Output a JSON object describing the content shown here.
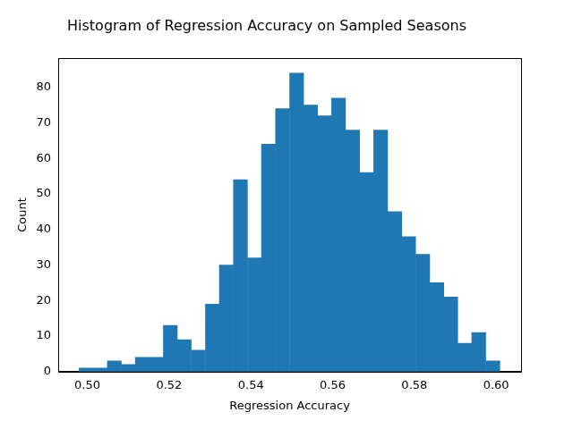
{
  "chart_data": {
    "type": "histogram",
    "title": "Histogram of Regression Accuracy on Sampled Seasons",
    "x_label": "Regression Accuracy",
    "y_label": "Count",
    "bins": [
      0.498,
      0.5014,
      0.5049,
      0.5083,
      0.5117,
      0.5152,
      0.5186,
      0.522,
      0.5254,
      0.5289,
      0.5323,
      0.5357,
      0.5392,
      0.5426,
      0.546,
      0.5495,
      0.5529,
      0.5563,
      0.5597,
      0.5632,
      0.5666,
      0.57,
      0.5735,
      0.5769,
      0.5803,
      0.5838,
      0.5872,
      0.5906,
      0.594,
      0.5975,
      0.6009
    ],
    "values": [
      1,
      1,
      3,
      2,
      4,
      4,
      13,
      9,
      6,
      19,
      30,
      54,
      32,
      64,
      74,
      84,
      75,
      72,
      77,
      68,
      56,
      68,
      45,
      38,
      33,
      25,
      21,
      8,
      11,
      3
    ],
    "color": "#1f77b4",
    "xlim": [
      0.4929,
      0.6061
    ],
    "xticks": [
      {
        "value": 0.5,
        "label": "0.50"
      },
      {
        "value": 0.52,
        "label": "0.52"
      },
      {
        "value": 0.54,
        "label": "0.54"
      },
      {
        "value": 0.56,
        "label": "0.56"
      },
      {
        "value": 0.58,
        "label": "0.58"
      },
      {
        "value": 0.6,
        "label": "0.60"
      }
    ],
    "ylim": [
      0,
      88.2
    ],
    "yticks": [
      0,
      10,
      20,
      30,
      40,
      50,
      60,
      70,
      80
    ],
    "grid": false
  }
}
